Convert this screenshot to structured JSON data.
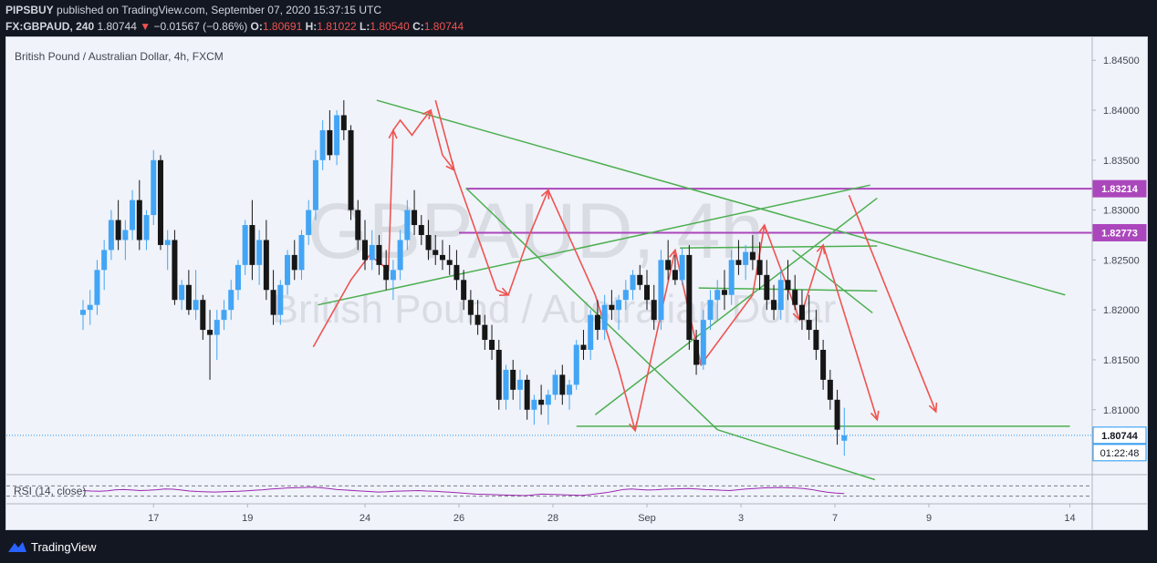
{
  "header": {
    "publisher": "PIPSBUY",
    "published_text": "published on TradingView.com, September 07, 2020 15:37:15 UTC",
    "symbol": "FX:GBPAUD, 240",
    "last": "1.80744",
    "change_arrow": "▼",
    "change": "−0.01567 (−0.86%)",
    "o_label": "O:",
    "o_value": "1.80691",
    "h_label": "H:",
    "h_value": "1.81022",
    "l_label": "L:",
    "l_value": "1.80540",
    "c_label": "C:",
    "c_value": "1.80744"
  },
  "footer": {
    "brand": "TradingView",
    "logo_icon": "tradingview-logo-icon"
  },
  "colors": {
    "bull": "#42a5f5",
    "bear": "#161616",
    "trend_line": "#4caf50",
    "arrow": "#ef5350",
    "level_line": "#ab47bc",
    "rsi": "#9c27b0"
  },
  "chart_data": {
    "type": "candlestick",
    "title": "British Pound / Australian Dollar, 4h, FXCM",
    "watermark_symbol": "GBPAUD, 4h",
    "watermark_name": "British Pound / Australian Dollar",
    "y_ticks": [
      "1.84500",
      "1.84000",
      "1.83500",
      "1.83000",
      "1.82500",
      "1.82000",
      "1.81500",
      "1.81000"
    ],
    "y_tick_values": [
      1.845,
      1.84,
      1.835,
      1.83,
      1.825,
      1.82,
      1.815,
      1.81
    ],
    "x_ticks": [
      "17",
      "19",
      "24",
      "26",
      "28",
      "Sep",
      "3",
      "7",
      "9",
      "14"
    ],
    "x_tick_positions": [
      12,
      16,
      21,
      25,
      29,
      33,
      37,
      41,
      45,
      51
    ],
    "ylim": [
      1.8035,
      1.8473
    ],
    "price_labels": [
      {
        "value": 1.83214,
        "text": "1.83214",
        "kind": "level"
      },
      {
        "value": 1.82773,
        "text": "1.82773",
        "kind": "level"
      },
      {
        "value": 1.80744,
        "text": "1.80744",
        "kind": "current"
      }
    ],
    "countdown": "01:22:48",
    "level_lines": [
      {
        "t1": 25.3,
        "t2": 1000,
        "value": 1.83214
      },
      {
        "t1": 25.0,
        "t2": 1000,
        "value": 1.82773
      }
    ],
    "horizontal_support": {
      "t1": 30.0,
      "t2": 51.0,
      "value": 1.80835
    },
    "trend_lines": [
      [
        21.5,
        1.841,
        50.8,
        1.8215
      ],
      [
        25.3,
        1.8322,
        36.0,
        1.808
      ],
      [
        36.0,
        1.808,
        42.7,
        1.803
      ],
      [
        19.0,
        1.8205,
        42.5,
        1.8325
      ],
      [
        30.8,
        1.8095,
        42.8,
        1.8312
      ],
      [
        34.4,
        1.8262,
        42.8,
        1.8264
      ],
      [
        35.2,
        1.8222,
        42.8,
        1.8219
      ],
      [
        39.2,
        1.826,
        42.6,
        1.8197
      ]
    ],
    "arrow_paths": [
      [
        [
          18.8,
          1.8163
        ],
        [
          20.4,
          1.823
        ],
        [
          21.2,
          1.8255
        ],
        [
          22.0,
          1.824
        ],
        [
          22.2,
          1.838
        ]
      ],
      [
        [
          22.2,
          1.838
        ],
        [
          22.5,
          1.839
        ],
        [
          23.0,
          1.8375
        ],
        [
          23.4,
          1.8388
        ],
        [
          23.8,
          1.84
        ]
      ],
      [
        [
          23.8,
          1.84
        ],
        [
          24.3,
          1.8355
        ],
        [
          24.8,
          1.834
        ]
      ],
      [
        [
          24.0,
          1.841
        ],
        [
          24.8,
          1.834
        ],
        [
          26.6,
          1.822
        ],
        [
          27.1,
          1.8215
        ]
      ],
      [
        [
          27.1,
          1.8215
        ],
        [
          28.0,
          1.8275
        ],
        [
          28.8,
          1.832
        ]
      ],
      [
        [
          28.8,
          1.832
        ],
        [
          30.8,
          1.8215
        ],
        [
          31.8,
          1.814
        ],
        [
          32.5,
          1.8079
        ]
      ],
      [
        [
          32.5,
          1.8079
        ],
        [
          34.2,
          1.826
        ]
      ],
      [
        [
          34.2,
          1.826
        ],
        [
          35.3,
          1.8145
        ]
      ],
      [
        [
          35.3,
          1.8145
        ],
        [
          37.5,
          1.8215
        ],
        [
          38.0,
          1.8285
        ]
      ],
      [
        [
          38.0,
          1.8285
        ],
        [
          39.5,
          1.819
        ]
      ],
      [
        [
          39.5,
          1.819
        ],
        [
          40.5,
          1.8265
        ]
      ],
      [
        [
          40.5,
          1.8265
        ],
        [
          42.8,
          1.809
        ]
      ],
      [
        [
          41.6,
          1.8315
        ],
        [
          45.3,
          1.8098
        ]
      ]
    ],
    "candles": [
      [
        9.0,
        1.8195,
        1.821,
        1.818,
        1.82
      ],
      [
        9.3,
        1.82,
        1.822,
        1.8185,
        1.8205
      ],
      [
        9.6,
        1.8205,
        1.825,
        1.8195,
        1.824
      ],
      [
        9.9,
        1.824,
        1.827,
        1.822,
        1.826
      ],
      [
        10.2,
        1.826,
        1.83,
        1.825,
        1.829
      ],
      [
        10.5,
        1.829,
        1.831,
        1.826,
        1.827
      ],
      [
        10.8,
        1.827,
        1.829,
        1.825,
        1.828
      ],
      [
        11.1,
        1.828,
        1.832,
        1.827,
        1.831
      ],
      [
        11.4,
        1.831,
        1.833,
        1.826,
        1.827
      ],
      [
        11.7,
        1.827,
        1.83,
        1.826,
        1.8295
      ],
      [
        12.0,
        1.8295,
        1.836,
        1.8285,
        1.835
      ],
      [
        12.3,
        1.835,
        1.8355,
        1.826,
        1.8265
      ],
      [
        12.6,
        1.8265,
        1.828,
        1.824,
        1.827
      ],
      [
        12.9,
        1.827,
        1.828,
        1.8205,
        1.821
      ],
      [
        13.2,
        1.821,
        1.823,
        1.82,
        1.8225
      ],
      [
        13.5,
        1.8225,
        1.824,
        1.8195,
        1.82
      ],
      [
        13.8,
        1.82,
        1.824,
        1.819,
        1.821
      ],
      [
        14.1,
        1.821,
        1.8215,
        1.817,
        1.818
      ],
      [
        14.4,
        1.818,
        1.82,
        1.813,
        1.8175
      ],
      [
        14.7,
        1.8175,
        1.82,
        1.815,
        1.819
      ],
      [
        15.0,
        1.819,
        1.821,
        1.818,
        1.82
      ],
      [
        15.3,
        1.82,
        1.823,
        1.819,
        1.822
      ],
      [
        15.6,
        1.822,
        1.825,
        1.821,
        1.8245
      ],
      [
        15.9,
        1.8245,
        1.829,
        1.8235,
        1.8285
      ],
      [
        16.2,
        1.8285,
        1.831,
        1.823,
        1.8245
      ],
      [
        16.5,
        1.8245,
        1.828,
        1.8225,
        1.827
      ],
      [
        16.8,
        1.827,
        1.829,
        1.821,
        1.822
      ],
      [
        17.1,
        1.822,
        1.824,
        1.8185,
        1.8195
      ],
      [
        17.4,
        1.8195,
        1.823,
        1.8185,
        1.8225
      ],
      [
        17.7,
        1.8225,
        1.826,
        1.8215,
        1.8255
      ],
      [
        18.0,
        1.8255,
        1.827,
        1.823,
        1.824
      ],
      [
        18.3,
        1.824,
        1.828,
        1.823,
        1.8275
      ],
      [
        18.6,
        1.8275,
        1.831,
        1.8265,
        1.83
      ],
      [
        18.9,
        1.83,
        1.836,
        1.829,
        1.835
      ],
      [
        19.2,
        1.835,
        1.839,
        1.834,
        1.838
      ],
      [
        19.5,
        1.838,
        1.84,
        1.835,
        1.8355
      ],
      [
        19.8,
        1.8355,
        1.84,
        1.8345,
        1.8395
      ],
      [
        20.1,
        1.8395,
        1.841,
        1.837,
        1.838
      ],
      [
        20.4,
        1.838,
        1.8385,
        1.829,
        1.83
      ],
      [
        20.7,
        1.83,
        1.831,
        1.826,
        1.827
      ],
      [
        21.0,
        1.827,
        1.829,
        1.824,
        1.825
      ],
      [
        21.3,
        1.825,
        1.828,
        1.824,
        1.8265
      ],
      [
        21.6,
        1.8265,
        1.8275,
        1.8235,
        1.8245
      ],
      [
        21.9,
        1.8245,
        1.826,
        1.822,
        1.823
      ],
      [
        22.2,
        1.823,
        1.825,
        1.821,
        1.824
      ],
      [
        22.5,
        1.824,
        1.828,
        1.823,
        1.827
      ],
      [
        22.8,
        1.827,
        1.831,
        1.826,
        1.83
      ],
      [
        23.1,
        1.83,
        1.832,
        1.8275,
        1.8285
      ],
      [
        23.4,
        1.8285,
        1.8295,
        1.8265,
        1.8275
      ],
      [
        23.7,
        1.8275,
        1.829,
        1.825,
        1.826
      ],
      [
        24.0,
        1.826,
        1.8275,
        1.8245,
        1.8255
      ],
      [
        24.3,
        1.8255,
        1.827,
        1.824,
        1.825
      ],
      [
        24.6,
        1.825,
        1.8265,
        1.8235,
        1.8245
      ],
      [
        24.9,
        1.8245,
        1.826,
        1.822,
        1.823
      ],
      [
        25.2,
        1.823,
        1.824,
        1.82,
        1.821
      ],
      [
        25.5,
        1.821,
        1.822,
        1.8185,
        1.8195
      ],
      [
        25.8,
        1.8195,
        1.821,
        1.8175,
        1.8185
      ],
      [
        26.1,
        1.8185,
        1.8195,
        1.816,
        1.817
      ],
      [
        26.4,
        1.817,
        1.8185,
        1.815,
        1.816
      ],
      [
        26.7,
        1.816,
        1.817,
        1.81,
        1.811
      ],
      [
        27.0,
        1.811,
        1.8145,
        1.81,
        1.814
      ],
      [
        27.3,
        1.814,
        1.815,
        1.811,
        1.812
      ],
      [
        27.6,
        1.812,
        1.814,
        1.81,
        1.813
      ],
      [
        27.9,
        1.813,
        1.8135,
        1.809,
        1.81
      ],
      [
        28.2,
        1.81,
        1.8115,
        1.8085,
        1.811
      ],
      [
        28.5,
        1.811,
        1.8125,
        1.8095,
        1.8105
      ],
      [
        28.8,
        1.8105,
        1.812,
        1.8085,
        1.8115
      ],
      [
        29.1,
        1.8115,
        1.814,
        1.811,
        1.8135
      ],
      [
        29.4,
        1.8135,
        1.8145,
        1.8105,
        1.8115
      ],
      [
        29.7,
        1.8115,
        1.813,
        1.81,
        1.8125
      ],
      [
        30.0,
        1.8125,
        1.817,
        1.812,
        1.8165
      ],
      [
        30.3,
        1.8165,
        1.818,
        1.815,
        1.816
      ],
      [
        30.6,
        1.816,
        1.82,
        1.815,
        1.8195
      ],
      [
        30.9,
        1.8195,
        1.821,
        1.817,
        1.818
      ],
      [
        31.2,
        1.818,
        1.8215,
        1.817,
        1.8205
      ],
      [
        31.5,
        1.8205,
        1.822,
        1.819,
        1.82
      ],
      [
        31.8,
        1.82,
        1.8215,
        1.818,
        1.821
      ],
      [
        32.1,
        1.821,
        1.823,
        1.82,
        1.822
      ],
      [
        32.4,
        1.822,
        1.824,
        1.821,
        1.8235
      ],
      [
        32.7,
        1.8235,
        1.8245,
        1.822,
        1.8225
      ],
      [
        33.0,
        1.8225,
        1.824,
        1.82,
        1.821
      ],
      [
        33.3,
        1.821,
        1.8225,
        1.818,
        1.819
      ],
      [
        33.6,
        1.819,
        1.826,
        1.818,
        1.825
      ],
      [
        33.9,
        1.825,
        1.827,
        1.823,
        1.824
      ],
      [
        34.2,
        1.824,
        1.8255,
        1.8225,
        1.823
      ],
      [
        34.5,
        1.823,
        1.8262,
        1.8225,
        1.8255
      ],
      [
        34.8,
        1.8255,
        1.8265,
        1.816,
        1.817
      ],
      [
        35.1,
        1.817,
        1.818,
        1.8135,
        1.8145
      ],
      [
        35.4,
        1.8145,
        1.82,
        1.814,
        1.819
      ],
      [
        35.7,
        1.819,
        1.822,
        1.818,
        1.821
      ],
      [
        36.0,
        1.821,
        1.823,
        1.819,
        1.822
      ],
      [
        36.3,
        1.822,
        1.824,
        1.82,
        1.8215
      ],
      [
        36.6,
        1.8215,
        1.826,
        1.8205,
        1.825
      ],
      [
        36.9,
        1.825,
        1.827,
        1.8235,
        1.8245
      ],
      [
        37.2,
        1.8245,
        1.8265,
        1.823,
        1.8258
      ],
      [
        37.5,
        1.8258,
        1.8275,
        1.824,
        1.825
      ],
      [
        37.8,
        1.825,
        1.8268,
        1.822,
        1.8235
      ],
      [
        38.1,
        1.8235,
        1.825,
        1.82,
        1.821
      ],
      [
        38.4,
        1.821,
        1.8225,
        1.819,
        1.82
      ],
      [
        38.7,
        1.82,
        1.824,
        1.819,
        1.823
      ],
      [
        39.0,
        1.823,
        1.825,
        1.821,
        1.822
      ],
      [
        39.3,
        1.822,
        1.8235,
        1.82,
        1.8205
      ],
      [
        39.6,
        1.8205,
        1.822,
        1.818,
        1.819
      ],
      [
        39.9,
        1.819,
        1.8215,
        1.817,
        1.818
      ],
      [
        40.2,
        1.818,
        1.82,
        1.815,
        1.816
      ],
      [
        40.5,
        1.816,
        1.817,
        1.812,
        1.813
      ],
      [
        40.8,
        1.813,
        1.814,
        1.81,
        1.811
      ],
      [
        41.1,
        1.811,
        1.812,
        1.8065,
        1.808
      ],
      [
        41.4,
        1.8069,
        1.8102,
        1.8054,
        1.80744
      ]
    ],
    "rsi": {
      "label": "RSI (14, close)",
      "values": [
        52,
        50,
        49,
        51,
        55,
        56,
        54,
        52,
        53,
        55,
        58,
        57,
        54,
        50,
        48,
        47,
        46,
        47,
        48,
        49,
        51,
        53,
        55,
        58,
        60,
        62,
        63,
        64,
        65,
        63,
        60,
        56,
        54,
        52,
        50,
        48,
        46,
        47,
        49,
        50,
        51,
        52,
        50,
        49,
        47,
        45,
        43,
        40,
        38,
        37,
        36,
        35,
        34,
        33,
        32,
        35,
        38,
        37,
        36,
        35,
        34,
        33,
        36,
        40,
        44,
        50,
        56,
        58,
        56,
        54,
        55,
        57,
        58,
        59,
        60,
        58,
        56,
        55,
        53,
        52,
        55,
        58,
        60,
        62,
        63,
        64,
        63,
        62,
        60,
        56,
        50,
        45,
        42,
        40
      ],
      "upper": 70,
      "lower": 30
    }
  }
}
